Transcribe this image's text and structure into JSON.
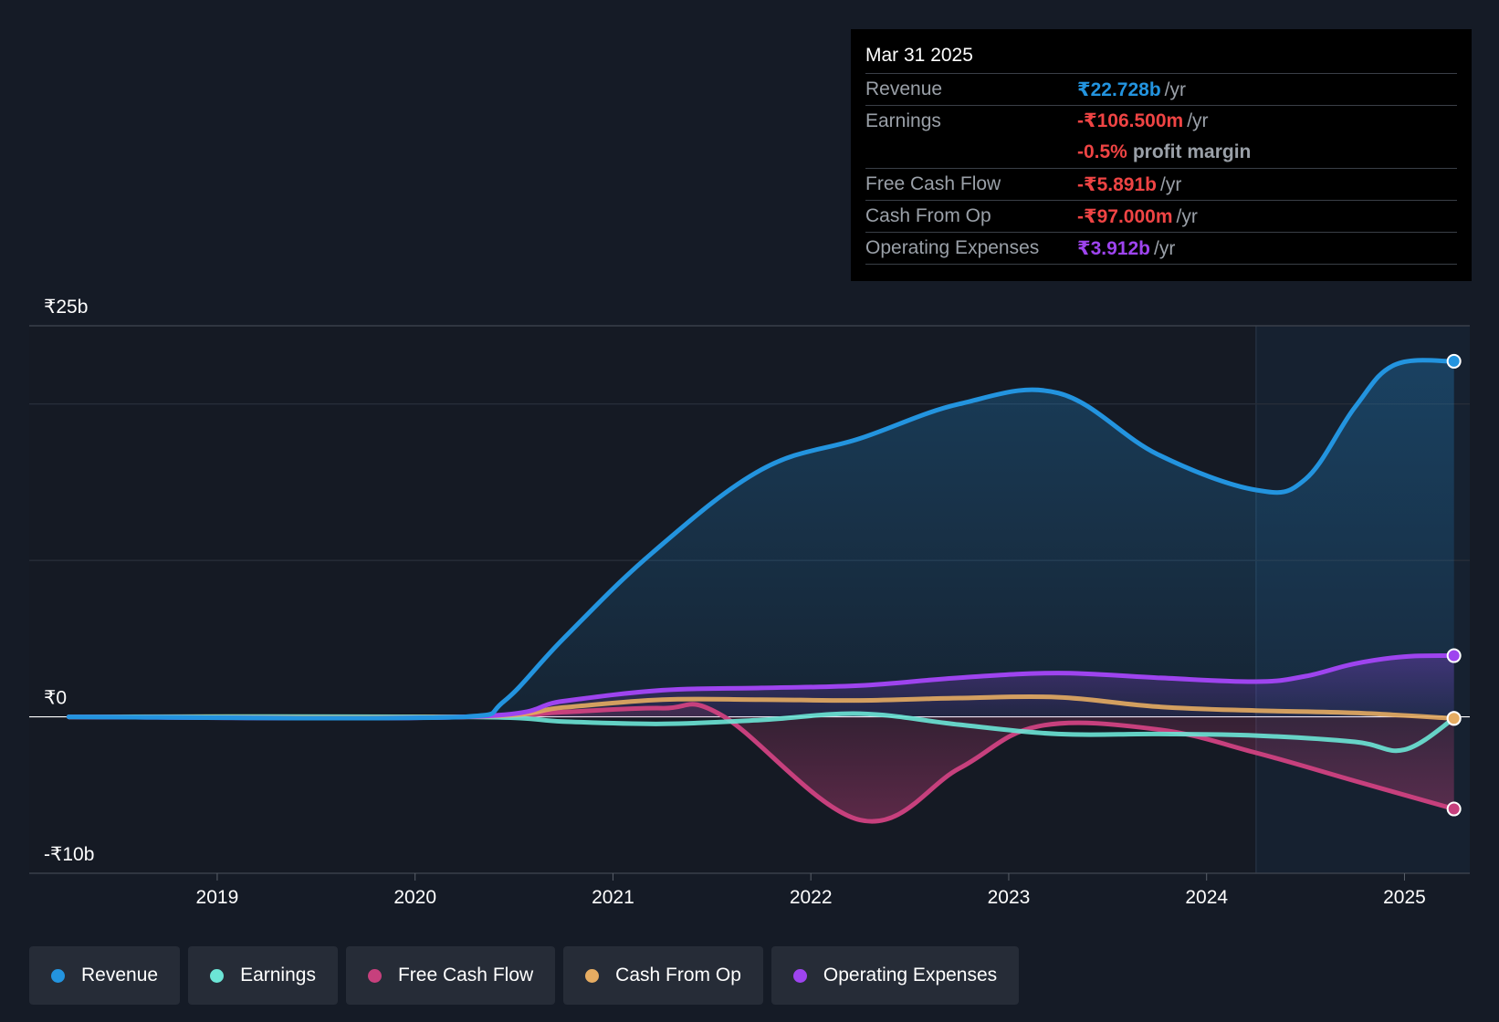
{
  "tooltip": {
    "date": "Mar 31 2025",
    "rows": {
      "revenue": {
        "label": "Revenue",
        "value": "₹22.728b",
        "unit": "/yr"
      },
      "earnings": {
        "label": "Earnings",
        "value": "-₹106.500m",
        "unit": "/yr",
        "margin_value": "-0.5%",
        "margin_label": "profit margin"
      },
      "fcf": {
        "label": "Free Cash Flow",
        "value": "-₹5.891b",
        "unit": "/yr"
      },
      "cfo": {
        "label": "Cash From Op",
        "value": "-₹97.000m",
        "unit": "/yr"
      },
      "opex": {
        "label": "Operating Expenses",
        "value": "₹3.912b",
        "unit": "/yr"
      }
    }
  },
  "legend": [
    {
      "label": "Revenue",
      "color": "#2394df"
    },
    {
      "label": "Earnings",
      "color": "#6ce5d6"
    },
    {
      "label": "Free Cash Flow",
      "color": "#c7407d"
    },
    {
      "label": "Cash From Op",
      "color": "#e6ac62"
    },
    {
      "label": "Operating Expenses",
      "color": "#9e44ef"
    }
  ],
  "colors": {
    "revenue": "#2394df",
    "earnings": "#6ce5d6",
    "fcf": "#c7407d",
    "cfo": "#e6ac62",
    "opex": "#9e44ef",
    "positive": "#2394df",
    "negative": "#ef4444"
  },
  "chart_data": {
    "type": "area",
    "title": "",
    "xlabel": "",
    "ylabel": "",
    "ylim": [
      -10,
      25
    ],
    "y_unit": "₹ billions",
    "y_tick_labels": [
      {
        "value": 25,
        "label": "₹25b"
      },
      {
        "value": 0,
        "label": "₹0"
      },
      {
        "value": -10,
        "label": "-₹10b"
      }
    ],
    "gridlines": [
      25,
      20,
      10,
      0,
      -10
    ],
    "xlim": [
      2018.05,
      2025.33
    ],
    "x_ticks": [
      2019,
      2020,
      2021,
      2022,
      2023,
      2024,
      2025
    ],
    "x_tick_labels": [
      "2019",
      "2020",
      "2021",
      "2022",
      "2023",
      "2024",
      "2025"
    ],
    "forecast_start": 2024.25,
    "series": [
      {
        "key": "revenue",
        "name": "Revenue",
        "x": [
          2018.25,
          2020.25,
          2020.45,
          2020.75,
          2021.2,
          2021.75,
          2022.25,
          2022.75,
          2023.25,
          2023.75,
          2024.25,
          2024.5,
          2024.75,
          2024.95,
          2025.25
        ],
        "y": [
          0,
          0,
          1.0,
          5.0,
          10.5,
          15.8,
          17.8,
          20.0,
          20.7,
          16.8,
          14.5,
          15.2,
          19.8,
          22.5,
          22.73
        ]
      },
      {
        "key": "opex",
        "name": "Operating Expenses",
        "x": [
          2018.25,
          2020.25,
          2020.75,
          2021.25,
          2021.75,
          2022.25,
          2022.75,
          2023.25,
          2023.75,
          2024.25,
          2024.5,
          2024.75,
          2025.0,
          2025.25
        ],
        "y": [
          0,
          0,
          1.0,
          1.7,
          1.85,
          2.0,
          2.5,
          2.8,
          2.5,
          2.25,
          2.6,
          3.4,
          3.85,
          3.91
        ]
      },
      {
        "key": "cfo",
        "name": "Cash From Op",
        "x": [
          2018.25,
          2020.25,
          2020.75,
          2021.25,
          2021.75,
          2022.25,
          2022.75,
          2023.25,
          2023.75,
          2024.25,
          2024.75,
          2025.25
        ],
        "y": [
          0,
          0,
          0.6,
          1.1,
          1.1,
          1.05,
          1.2,
          1.25,
          0.65,
          0.4,
          0.25,
          -0.1
        ]
      },
      {
        "key": "earnings",
        "name": "Earnings",
        "x": [
          2018.25,
          2020.25,
          2020.75,
          2021.25,
          2021.75,
          2022.25,
          2022.75,
          2023.25,
          2023.75,
          2024.25,
          2024.75,
          2025.0,
          2025.25
        ],
        "y": [
          0,
          0,
          -0.3,
          -0.45,
          -0.2,
          0.2,
          -0.5,
          -1.1,
          -1.1,
          -1.2,
          -1.6,
          -2.1,
          -0.1
        ]
      },
      {
        "key": "fcf",
        "name": "Free Cash Flow",
        "x": [
          2018.25,
          2020.25,
          2020.75,
          2021.25,
          2021.55,
          2022.25,
          2022.75,
          2023.15,
          2023.75,
          2024.25,
          2024.75,
          2025.25
        ],
        "y": [
          0,
          0,
          0.3,
          0.55,
          0.1,
          -6.6,
          -3.3,
          -0.6,
          -0.8,
          -2.3,
          -4.1,
          -5.89
        ]
      }
    ]
  }
}
